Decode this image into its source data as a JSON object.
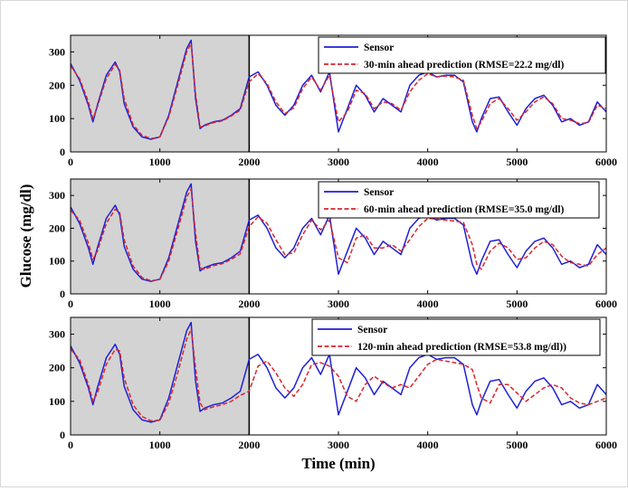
{
  "colors": {
    "sensor": "#1f1fd6",
    "prediction": "#d8262d",
    "training_shade": "#d3d3d3"
  },
  "shared_axes": {
    "xlabel": "Time (min)",
    "ylabel": "Glucose (mg/dl)"
  },
  "chart_data": [
    {
      "type": "line",
      "xlim": [
        0,
        6000
      ],
      "ylim": [
        0,
        350
      ],
      "xticks": [
        0,
        1000,
        2000,
        3000,
        4000,
        5000,
        6000
      ],
      "yticks": [
        0,
        100,
        200,
        300
      ],
      "shaded_region": [
        0,
        2000
      ],
      "legend": "top-right",
      "series": [
        {
          "name": "Sensor",
          "style": "solid"
        },
        {
          "name": "30-min ahead prediction (RMSE=22.2 mg/dl)",
          "style": "dashed"
        }
      ],
      "x": [
        0,
        100,
        200,
        250,
        300,
        400,
        500,
        550,
        600,
        700,
        800,
        900,
        1000,
        1100,
        1200,
        1300,
        1350,
        1400,
        1450,
        1500,
        1600,
        1700,
        1800,
        1900,
        2000,
        2100,
        2200,
        2300,
        2400,
        2500,
        2600,
        2700,
        2800,
        2900,
        3000,
        3100,
        3200,
        3300,
        3400,
        3500,
        3600,
        3700,
        3800,
        3900,
        4000,
        4100,
        4200,
        4300,
        4400,
        4500,
        4550,
        4600,
        4700,
        4800,
        4900,
        5000,
        5100,
        5200,
        5300,
        5400,
        5500,
        5600,
        5700,
        5800,
        5900,
        6000
      ],
      "sensor": [
        265,
        215,
        140,
        90,
        140,
        230,
        270,
        240,
        145,
        75,
        45,
        38,
        45,
        110,
        210,
        310,
        335,
        160,
        70,
        80,
        90,
        95,
        110,
        130,
        225,
        240,
        200,
        140,
        110,
        140,
        200,
        230,
        180,
        240,
        60,
        130,
        200,
        170,
        120,
        160,
        140,
        120,
        200,
        230,
        240,
        225,
        230,
        230,
        210,
        90,
        60,
        100,
        160,
        165,
        120,
        80,
        130,
        160,
        170,
        140,
        90,
        100,
        80,
        90,
        150,
        120
      ],
      "prediction": [
        258,
        220,
        150,
        100,
        135,
        220,
        262,
        245,
        160,
        82,
        50,
        40,
        45,
        105,
        200,
        300,
        325,
        175,
        75,
        78,
        88,
        93,
        108,
        125,
        210,
        235,
        205,
        150,
        115,
        132,
        190,
        225,
        185,
        230,
        90,
        120,
        185,
        175,
        130,
        150,
        145,
        125,
        180,
        215,
        235,
        225,
        228,
        225,
        215,
        110,
        70,
        90,
        145,
        160,
        130,
        95,
        120,
        150,
        165,
        145,
        100,
        95,
        85,
        88,
        140,
        130
      ]
    },
    {
      "type": "line",
      "xlim": [
        0,
        6000
      ],
      "ylim": [
        0,
        350
      ],
      "xticks": [
        0,
        1000,
        2000,
        3000,
        4000,
        5000,
        6000
      ],
      "yticks": [
        0,
        100,
        200,
        300
      ],
      "shaded_region": [
        0,
        2000
      ],
      "legend": "top-right",
      "series": [
        {
          "name": "Sensor",
          "style": "solid"
        },
        {
          "name": "60-min ahead prediction (RMSE=35.0 mg/dl)",
          "style": "dashed"
        }
      ],
      "x": [
        0,
        100,
        200,
        250,
        300,
        400,
        500,
        550,
        600,
        700,
        800,
        900,
        1000,
        1100,
        1200,
        1300,
        1350,
        1400,
        1450,
        1500,
        1600,
        1700,
        1800,
        1900,
        2000,
        2100,
        2200,
        2300,
        2400,
        2500,
        2600,
        2700,
        2800,
        2900,
        3000,
        3100,
        3200,
        3300,
        3400,
        3500,
        3600,
        3700,
        3800,
        3900,
        4000,
        4100,
        4200,
        4300,
        4400,
        4500,
        4550,
        4600,
        4700,
        4800,
        4900,
        5000,
        5100,
        5200,
        5300,
        5400,
        5500,
        5600,
        5700,
        5800,
        5900,
        6000
      ],
      "sensor": [
        265,
        215,
        140,
        90,
        140,
        230,
        270,
        240,
        145,
        75,
        45,
        38,
        45,
        110,
        210,
        310,
        335,
        160,
        70,
        80,
        90,
        95,
        110,
        130,
        225,
        240,
        200,
        140,
        110,
        140,
        200,
        230,
        180,
        240,
        60,
        130,
        200,
        170,
        120,
        160,
        140,
        120,
        200,
        230,
        240,
        225,
        230,
        230,
        210,
        90,
        60,
        100,
        160,
        165,
        120,
        80,
        130,
        160,
        170,
        140,
        90,
        100,
        80,
        90,
        150,
        120
      ],
      "prediction": [
        255,
        225,
        155,
        105,
        130,
        215,
        258,
        248,
        165,
        85,
        50,
        40,
        44,
        100,
        195,
        295,
        320,
        185,
        80,
        75,
        86,
        92,
        105,
        122,
        205,
        235,
        215,
        165,
        120,
        125,
        180,
        225,
        195,
        225,
        110,
        95,
        170,
        180,
        140,
        140,
        150,
        130,
        165,
        205,
        230,
        228,
        225,
        222,
        218,
        150,
        90,
        75,
        130,
        155,
        140,
        105,
        110,
        140,
        160,
        150,
        115,
        95,
        90,
        85,
        120,
        140
      ]
    },
    {
      "type": "line",
      "xlim": [
        0,
        6000
      ],
      "ylim": [
        0,
        350
      ],
      "xticks": [
        0,
        1000,
        2000,
        3000,
        4000,
        5000,
        6000
      ],
      "yticks": [
        0,
        100,
        200,
        300
      ],
      "shaded_region": [
        0,
        2000
      ],
      "legend": "top-right",
      "series": [
        {
          "name": "Sensor",
          "style": "solid"
        },
        {
          "name": "120-min ahead prediction (RMSE=53.8 mg/dl))",
          "style": "dashed"
        }
      ],
      "x": [
        0,
        100,
        200,
        250,
        300,
        400,
        500,
        550,
        600,
        700,
        800,
        900,
        1000,
        1100,
        1200,
        1300,
        1350,
        1400,
        1450,
        1500,
        1600,
        1700,
        1800,
        1900,
        2000,
        2100,
        2200,
        2300,
        2400,
        2500,
        2600,
        2700,
        2800,
        2900,
        3000,
        3100,
        3200,
        3300,
        3400,
        3500,
        3600,
        3700,
        3800,
        3900,
        4000,
        4100,
        4200,
        4300,
        4400,
        4500,
        4550,
        4600,
        4700,
        4800,
        4900,
        5000,
        5100,
        5200,
        5300,
        5400,
        5500,
        5600,
        5700,
        5800,
        5900,
        6000
      ],
      "sensor": [
        265,
        215,
        140,
        90,
        140,
        230,
        270,
        240,
        145,
        75,
        45,
        38,
        45,
        110,
        210,
        310,
        335,
        160,
        70,
        80,
        90,
        95,
        110,
        130,
        225,
        240,
        200,
        140,
        110,
        140,
        200,
        230,
        180,
        240,
        60,
        130,
        200,
        170,
        120,
        160,
        140,
        120,
        200,
        230,
        240,
        225,
        230,
        230,
        210,
        90,
        60,
        100,
        160,
        165,
        120,
        80,
        130,
        160,
        170,
        140,
        90,
        100,
        80,
        90,
        150,
        120
      ],
      "prediction": [
        255,
        225,
        150,
        100,
        125,
        210,
        255,
        250,
        170,
        90,
        55,
        42,
        44,
        95,
        185,
        285,
        315,
        200,
        95,
        75,
        84,
        90,
        100,
        118,
        130,
        205,
        220,
        185,
        140,
        115,
        150,
        210,
        215,
        205,
        175,
        115,
        100,
        150,
        175,
        155,
        140,
        150,
        140,
        175,
        210,
        225,
        220,
        215,
        210,
        195,
        150,
        110,
        95,
        150,
        150,
        125,
        100,
        120,
        140,
        150,
        140,
        110,
        95,
        90,
        100,
        110
      ]
    }
  ]
}
